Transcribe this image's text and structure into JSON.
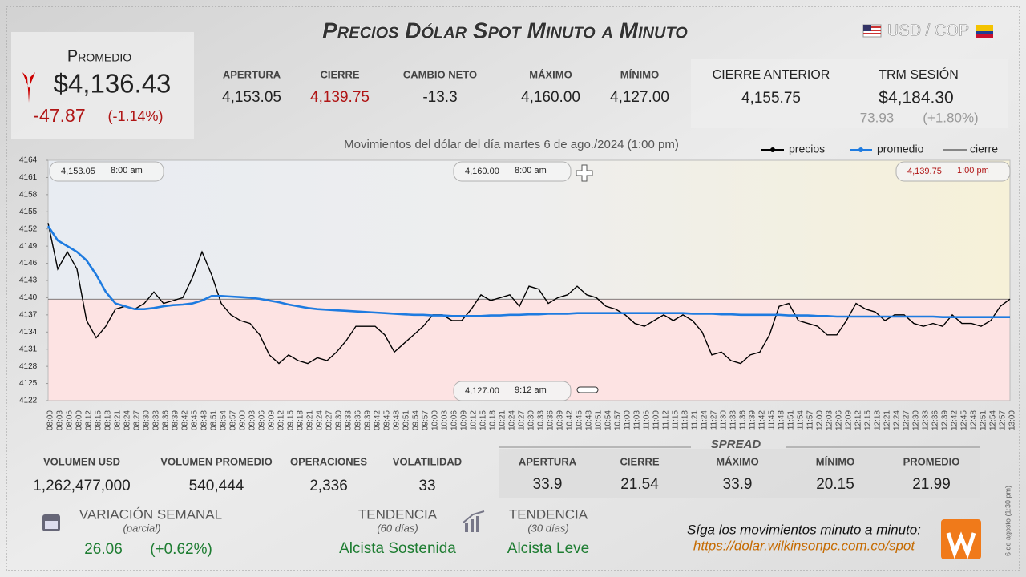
{
  "header": {
    "title": "Precios Dólar Spot Minuto a Minuto",
    "pair": "USD / COP"
  },
  "promedio": {
    "label": "Promedio",
    "value": "$4,136.43",
    "change": "-47.87",
    "change_pct": "(-1.14%)"
  },
  "session": [
    {
      "label": "APERTURA",
      "value": "4,153.05"
    },
    {
      "label": "CIERRE",
      "value": "4,139.75"
    },
    {
      "label": "CAMBIO NETO",
      "value": "-13.3"
    },
    {
      "label": "MÁXIMO",
      "value": "4,160.00"
    },
    {
      "label": "MÍNIMO",
      "value": "4,127.00"
    }
  ],
  "previous": {
    "cierre_label": "CIERRE ANTERIOR",
    "cierre": "4,155.75",
    "trm_label": "TRM SESIÓN",
    "trm": "$4,184.30",
    "trm_change": "73.93",
    "trm_pct": "(+1.80%)"
  },
  "chart_data": {
    "type": "line",
    "subtitle": "Movimientos del dólar del día martes 6 de ago./2024 (1:00 pm)",
    "categories": [
      "08:00",
      "08:03",
      "08:06",
      "08:09",
      "08:12",
      "08:15",
      "08:18",
      "08:21",
      "08:24",
      "08:27",
      "08:30",
      "08:33",
      "08:36",
      "08:39",
      "08:42",
      "08:45",
      "08:48",
      "08:51",
      "08:54",
      "08:57",
      "09:00",
      "09:03",
      "09:06",
      "09:09",
      "09:12",
      "09:15",
      "09:18",
      "09:21",
      "09:24",
      "09:27",
      "09:30",
      "09:33",
      "09:36",
      "09:39",
      "09:42",
      "09:45",
      "09:48",
      "09:51",
      "09:54",
      "09:57",
      "10:00",
      "10:03",
      "10:06",
      "10:09",
      "10:12",
      "10:15",
      "10:18",
      "10:21",
      "10:24",
      "10:27",
      "10:30",
      "10:33",
      "10:36",
      "10:39",
      "10:42",
      "10:45",
      "10:48",
      "10:51",
      "10:54",
      "10:57",
      "11:00",
      "11:03",
      "11:06",
      "11:09",
      "11:12",
      "11:15",
      "11:18",
      "11:21",
      "11:24",
      "11:27",
      "11:30",
      "11:33",
      "11:36",
      "11:39",
      "11:42",
      "11:45",
      "11:48",
      "11:51",
      "11:54",
      "11:57",
      "12:00",
      "12:03",
      "12:06",
      "12:09",
      "12:12",
      "12:15",
      "12:18",
      "12:21",
      "12:24",
      "12:27",
      "12:30",
      "12:33",
      "12:36",
      "12:39",
      "12:42",
      "12:45",
      "12:48",
      "12:51",
      "12:54",
      "12:57",
      "13:00"
    ],
    "series": [
      {
        "name": "precios",
        "color": "#000000",
        "values": [
          4153.05,
          4145,
          4148,
          4145,
          4136,
          4133,
          4135,
          4138,
          4138.5,
          4138,
          4139,
          4141,
          4139,
          4139.5,
          4140,
          4143.5,
          4148,
          4144,
          4139,
          4137,
          4136,
          4135.5,
          4133.5,
          4130,
          4128.5,
          4130,
          4129,
          4128.5,
          4129.5,
          4129,
          4130.5,
          4132.5,
          4135,
          4135,
          4135,
          4133.5,
          4130.5,
          4132,
          4133.5,
          4135,
          4137,
          4137,
          4136,
          4136,
          4138,
          4140.5,
          4139.5,
          4140,
          4140.5,
          4138.5,
          4142,
          4141.5,
          4139,
          4140,
          4140.5,
          4142,
          4140.5,
          4140,
          4138.5,
          4138,
          4137,
          4135.5,
          4135,
          4136,
          4137,
          4136,
          4137,
          4136,
          4134,
          4130,
          4130.5,
          4129,
          4128.5,
          4130,
          4130.5,
          4133.5,
          4138.5,
          4139,
          4136,
          4135.5,
          4135,
          4133.5,
          4133.5,
          4136,
          4139,
          4138,
          4137.5,
          4136,
          4137,
          4137,
          4135.5,
          4135,
          4135.5,
          4135,
          4137,
          4135.5,
          4135.5,
          4135,
          4136,
          4138.5,
          4139.75
        ]
      },
      {
        "name": "promedio",
        "color": "#1e7be0",
        "values": [
          4152.5,
          4150,
          4149,
          4148,
          4146.5,
          4144,
          4141,
          4139,
          4138.5,
          4138,
          4138,
          4138.2,
          4138.5,
          4138.7,
          4138.8,
          4139,
          4139.5,
          4140.3,
          4140.3,
          4140.2,
          4140.1,
          4140,
          4139.8,
          4139.5,
          4139.2,
          4138.8,
          4138.5,
          4138.2,
          4138,
          4137.9,
          4137.8,
          4137.7,
          4137.6,
          4137.5,
          4137.4,
          4137.3,
          4137.2,
          4137.1,
          4137,
          4137,
          4136.9,
          4136.9,
          4136.8,
          4136.8,
          4136.8,
          4136.8,
          4136.9,
          4136.9,
          4137,
          4137,
          4137.1,
          4137.1,
          4137.2,
          4137.2,
          4137.2,
          4137.3,
          4137.3,
          4137.3,
          4137.3,
          4137.3,
          4137.3,
          4137.3,
          4137.3,
          4137.3,
          4137.3,
          4137.3,
          4137.3,
          4137.2,
          4137.2,
          4137.2,
          4137.1,
          4137.1,
          4137,
          4137,
          4137,
          4137,
          4137,
          4136.9,
          4136.9,
          4136.9,
          4136.8,
          4136.8,
          4136.7,
          4136.7,
          4136.7,
          4136.7,
          4136.7,
          4136.7,
          4136.7,
          4136.7,
          4136.7,
          4136.7,
          4136.7,
          4136.6,
          4136.6,
          4136.6,
          4136.6,
          4136.6,
          4136.6,
          4136.6,
          4136.6
        ]
      }
    ],
    "reference": {
      "name": "cierre",
      "value": 4139.75,
      "color": "#555555"
    },
    "annotations": [
      {
        "value": "4,153.05",
        "time": "8:00 am"
      },
      {
        "value": "4,160.00",
        "time": "8:00 am"
      },
      {
        "value": "4,139.75",
        "time": "1:00 pm"
      },
      {
        "value": "4,127.00",
        "time": "9:12 am"
      }
    ],
    "ylim": [
      4122,
      4164
    ],
    "yticks": [
      4122,
      4125,
      4128,
      4131,
      4134,
      4137,
      4140,
      4143,
      4146,
      4149,
      4152,
      4155,
      4158,
      4161,
      4164
    ]
  },
  "volume": [
    {
      "label": "VOLUMEN USD",
      "value": "1,262,477,000"
    },
    {
      "label": "VOLUMEN PROMEDIO",
      "value": "540,444"
    },
    {
      "label": "OPERACIONES",
      "value": "2,336"
    },
    {
      "label": "VOLATILIDAD",
      "value": "33"
    }
  ],
  "spread": {
    "title": "SPREAD",
    "items": [
      {
        "label": "APERTURA",
        "value": "33.9"
      },
      {
        "label": "CIERRE",
        "value": "21.54"
      },
      {
        "label": "MÁXIMO",
        "value": "33.9"
      },
      {
        "label": "MÍNIMO",
        "value": "20.15"
      },
      {
        "label": "PROMEDIO",
        "value": "21.99"
      }
    ]
  },
  "weekly": {
    "label": "VARIACIÓN SEMANAL",
    "note": "(parcial)",
    "value": "26.06",
    "pct": "(+0.62%)"
  },
  "trends": [
    {
      "label": "TENDENCIA",
      "note": "(60 días)",
      "value": "Alcista Sostenida"
    },
    {
      "label": "TENDENCIA",
      "note": "(30 días)",
      "value": "Alcista Leve"
    }
  ],
  "footer": {
    "text": "Síga los movimientos minuto a minuto:",
    "url": "https://dolar.wilkinsonpc.com.co/spot",
    "side": "6 de agosto (1:30 pm)"
  }
}
